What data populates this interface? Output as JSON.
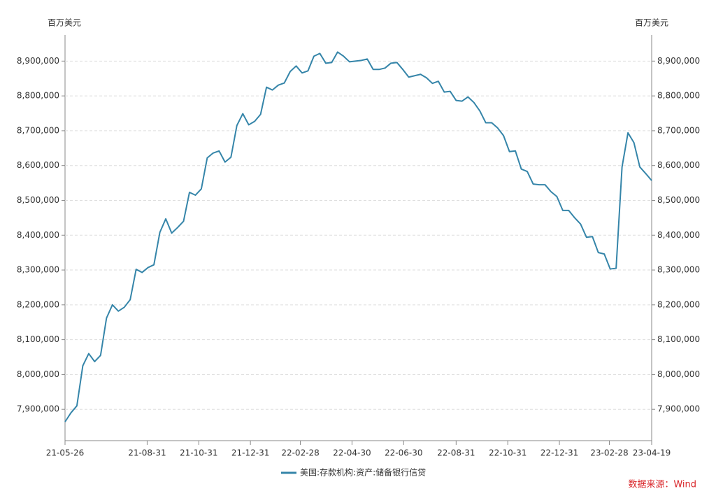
{
  "chart_data": {
    "type": "line",
    "y_label": "百万美元",
    "y2_label": "百万美元",
    "source": "数据来源：Wind",
    "x": [
      "21-05-26",
      "21-06-02",
      "21-06-09",
      "21-06-16",
      "21-06-23",
      "21-06-30",
      "21-07-07",
      "21-07-14",
      "21-07-21",
      "21-07-28",
      "21-08-04",
      "21-08-11",
      "21-08-18",
      "21-08-25",
      "21-09-01",
      "21-09-08",
      "21-09-15",
      "21-09-22",
      "21-09-29",
      "21-10-06",
      "21-10-13",
      "21-10-20",
      "21-10-27",
      "21-11-03",
      "21-11-10",
      "21-11-17",
      "21-11-24",
      "21-12-01",
      "21-12-08",
      "21-12-15",
      "21-12-22",
      "21-12-29",
      "22-01-05",
      "22-01-12",
      "22-01-19",
      "22-01-26",
      "22-02-02",
      "22-02-09",
      "22-02-16",
      "22-02-23",
      "22-03-02",
      "22-03-09",
      "22-03-16",
      "22-03-23",
      "22-03-30",
      "22-04-06",
      "22-04-13",
      "22-04-20",
      "22-04-27",
      "22-05-04",
      "22-05-11",
      "22-05-18",
      "22-05-25",
      "22-06-01",
      "22-06-08",
      "22-06-15",
      "22-06-22",
      "22-06-29",
      "22-07-06",
      "22-07-13",
      "22-07-20",
      "22-07-27",
      "22-08-03",
      "22-08-10",
      "22-08-17",
      "22-08-24",
      "22-08-31",
      "22-09-07",
      "22-09-14",
      "22-09-21",
      "22-09-28",
      "22-10-05",
      "22-10-12",
      "22-10-19",
      "22-10-26",
      "22-11-02",
      "22-11-09",
      "22-11-16",
      "22-11-23",
      "22-11-30",
      "22-12-07",
      "22-12-14",
      "22-12-21",
      "22-12-28",
      "23-01-04",
      "23-01-11",
      "23-01-18",
      "23-01-25",
      "23-02-01",
      "23-02-08",
      "23-02-15",
      "23-02-22",
      "23-03-01",
      "23-03-08",
      "23-03-15",
      "23-03-22",
      "23-03-29",
      "23-04-05",
      "23-04-12",
      "23-04-19"
    ],
    "series": [
      {
        "name": "美国:存款机构:资产:储备银行信贷",
        "color": "#3585a9",
        "values": [
          7864000,
          7890000,
          7910000,
          8025000,
          8060000,
          8037000,
          8055000,
          8162000,
          8200000,
          8182000,
          8193000,
          8215000,
          8302000,
          8293000,
          8307000,
          8315000,
          8408000,
          8447000,
          8406000,
          8422000,
          8440000,
          8523000,
          8515000,
          8533000,
          8622000,
          8636000,
          8642000,
          8610000,
          8624000,
          8715000,
          8749000,
          8717000,
          8727000,
          8747000,
          8825000,
          8817000,
          8831000,
          8837000,
          8870000,
          8886000,
          8866000,
          8872000,
          8914000,
          8922000,
          8894000,
          8896000,
          8926000,
          8914000,
          8898000,
          8900000,
          8902000,
          8906000,
          8876000,
          8876000,
          8880000,
          8894000,
          8896000,
          8876000,
          8854000,
          8858000,
          8862000,
          8852000,
          8836000,
          8842000,
          8811000,
          8813000,
          8787000,
          8785000,
          8797000,
          8781000,
          8757000,
          8723000,
          8723000,
          8708000,
          8686000,
          8640000,
          8642000,
          8590000,
          8583000,
          8547000,
          8545000,
          8545000,
          8525000,
          8511000,
          8471000,
          8471000,
          8450000,
          8432000,
          8394000,
          8396000,
          8350000,
          8346000,
          8303000,
          8305000,
          8596000,
          8694000,
          8666000,
          8596000,
          8577000,
          8557000
        ]
      }
    ],
    "xlim": [
      "21-05-26",
      "23-04-19"
    ],
    "xticks": [
      "21-05-26",
      "21-08-31",
      "21-10-31",
      "21-12-31",
      "22-02-28",
      "22-04-30",
      "22-06-30",
      "22-08-31",
      "22-10-31",
      "22-12-31",
      "23-02-28",
      "23-04-19"
    ],
    "ylim": [
      7810000,
      8975000
    ],
    "yticks": [
      {
        "value": 7900000,
        "label": "7,900,000"
      },
      {
        "value": 8000000,
        "label": "8,000,000"
      },
      {
        "value": 8100000,
        "label": "8,100,000"
      },
      {
        "value": 8200000,
        "label": "8,200,000"
      },
      {
        "value": 8300000,
        "label": "8,300,000"
      },
      {
        "value": 8400000,
        "label": "8,400,000"
      },
      {
        "value": 8500000,
        "label": "8,500,000"
      },
      {
        "value": 8600000,
        "label": "8,600,000"
      },
      {
        "value": 8700000,
        "label": "8,700,000"
      },
      {
        "value": 8800000,
        "label": "8,800,000"
      },
      {
        "value": 8900000,
        "label": "8,900,000"
      }
    ],
    "y2lim": [
      7810000,
      8975000
    ],
    "y2ticks": [
      {
        "value": 7900000,
        "label": "7,900,000"
      },
      {
        "value": 8000000,
        "label": "8,000,000"
      },
      {
        "value": 8100000,
        "label": "8,100,000"
      },
      {
        "value": 8200000,
        "label": "8,200,000"
      },
      {
        "value": 8300000,
        "label": "8,300,000"
      },
      {
        "value": 8400000,
        "label": "8,400,000"
      },
      {
        "value": 8500000,
        "label": "8,500,000"
      },
      {
        "value": 8600000,
        "label": "8,600,000"
      },
      {
        "value": 8700000,
        "label": "8,700,000"
      },
      {
        "value": 8800000,
        "label": "8,800,000"
      },
      {
        "value": 8900000,
        "label": "8,900,000"
      }
    ],
    "grid": true
  }
}
